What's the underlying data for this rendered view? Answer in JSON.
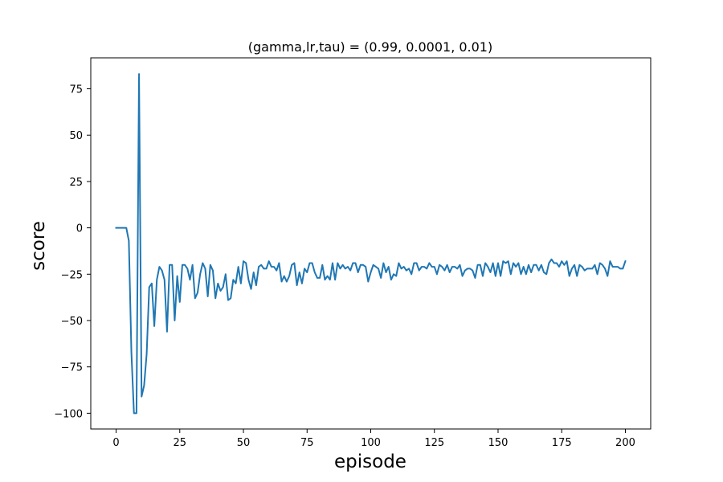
{
  "chart_data": {
    "type": "line",
    "title": "(gamma,lr,tau) = (0.99, 0.0001, 0.01)",
    "xlabel": "episode",
    "ylabel": "score",
    "xlim": [
      -9.95,
      209.95
    ],
    "ylim": [
      -108.5,
      91.7
    ],
    "grid": false,
    "legend": "none",
    "x_ticks": [
      0,
      25,
      50,
      75,
      100,
      125,
      150,
      175,
      200
    ],
    "y_ticks": [
      75,
      50,
      25,
      0,
      -25,
      -50,
      -75,
      -100
    ],
    "x_tick_labels": [
      "0",
      "25",
      "50",
      "75",
      "100",
      "125",
      "150",
      "175",
      "200"
    ],
    "y_tick_labels": [
      "75",
      "50",
      "25",
      "0",
      "−25",
      "−50",
      "−75",
      "−100"
    ],
    "series": [
      {
        "color": "#1f77b4",
        "x_start": 0,
        "x_step": 1,
        "values": [
          0,
          0,
          0,
          0,
          0,
          -7,
          -67,
          -100,
          -100,
          83,
          -91,
          -85,
          -68,
          -32,
          -30,
          -53,
          -28,
          -21,
          -23,
          -28,
          -56,
          -20,
          -20,
          -50,
          -26,
          -40,
          -20,
          -20,
          -22,
          -28,
          -20,
          -38,
          -35,
          -25,
          -19,
          -22,
          -37,
          -20,
          -23,
          -38,
          -30,
          -34,
          -32,
          -25,
          -39,
          -38,
          -28,
          -30,
          -21,
          -30,
          -18,
          -19,
          -28,
          -33,
          -24,
          -31,
          -21,
          -20,
          -22,
          -22,
          -18,
          -21,
          -21,
          -23,
          -19,
          -29,
          -26,
          -29,
          -26,
          -20,
          -19,
          -31,
          -24,
          -30,
          -22,
          -24,
          -19,
          -19,
          -24,
          -27,
          -27,
          -20,
          -28,
          -26,
          -28,
          -19,
          -28,
          -19,
          -22,
          -20,
          -22,
          -21,
          -23,
          -19,
          -19,
          -24,
          -20,
          -20,
          -21,
          -29,
          -24,
          -20,
          -21,
          -22,
          -27,
          -19,
          -24,
          -21,
          -28,
          -25,
          -26,
          -19,
          -22,
          -21,
          -23,
          -22,
          -25,
          -19,
          -19,
          -23,
          -21,
          -21,
          -22,
          -19,
          -21,
          -21,
          -25,
          -20,
          -21,
          -23,
          -20,
          -24,
          -21,
          -21,
          -22,
          -20,
          -26,
          -23,
          -22,
          -22,
          -23,
          -27,
          -20,
          -20,
          -26,
          -19,
          -21,
          -24,
          -19,
          -26,
          -19,
          -26,
          -18,
          -19,
          -18,
          -25,
          -19,
          -21,
          -19,
          -25,
          -21,
          -25,
          -20,
          -24,
          -20,
          -20,
          -23,
          -20,
          -24,
          -25,
          -19,
          -17,
          -19,
          -19,
          -21,
          -18,
          -20,
          -18,
          -26,
          -22,
          -20,
          -26,
          -20,
          -21,
          -23,
          -22,
          -22,
          -22,
          -20,
          -25,
          -19,
          -20,
          -22,
          -26,
          -18,
          -21,
          -21,
          -21,
          -22,
          -22,
          -18
        ]
      }
    ]
  }
}
